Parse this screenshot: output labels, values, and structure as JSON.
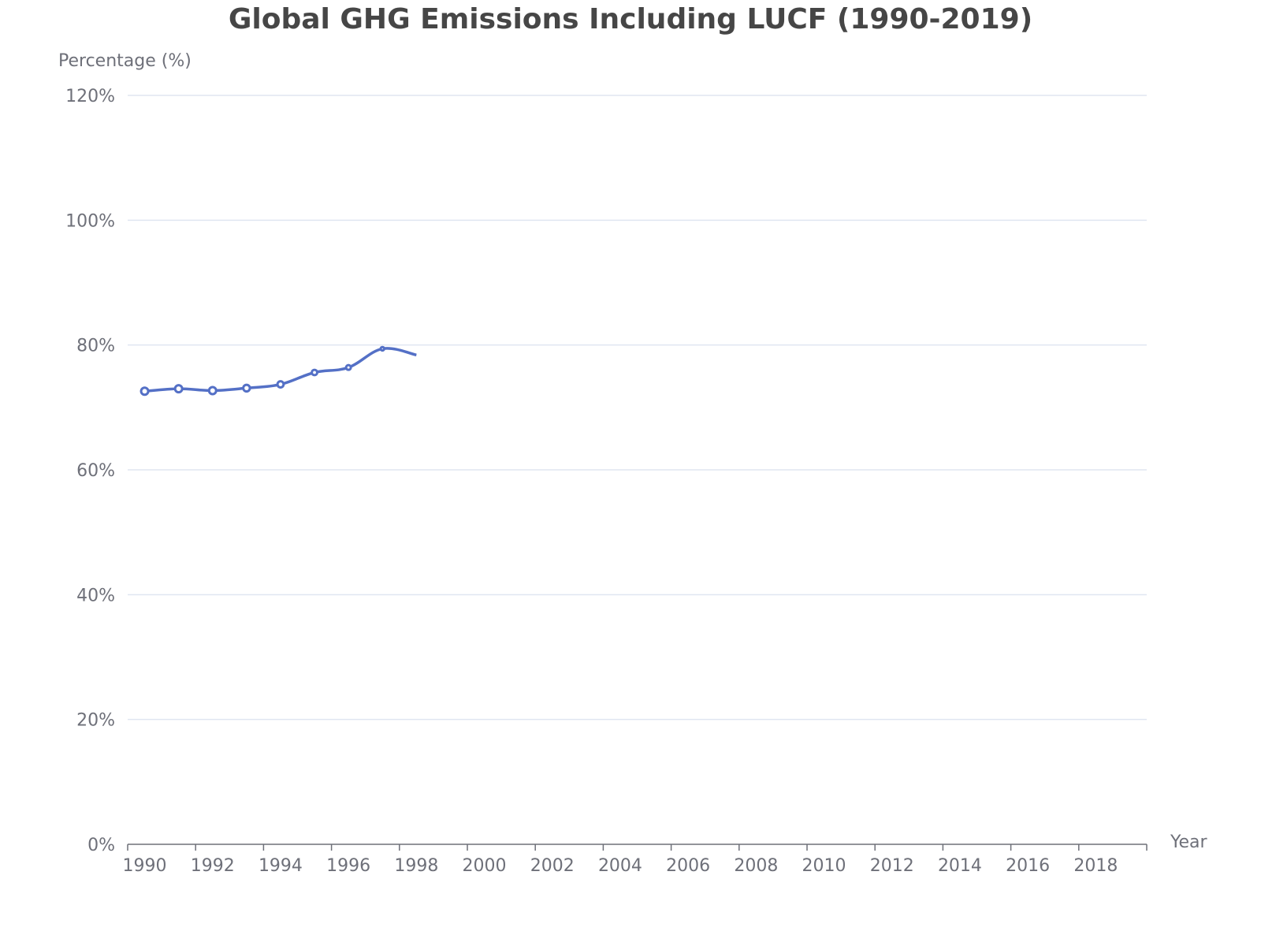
{
  "chart_data": {
    "type": "line",
    "title": "Global GHG Emissions Including LUCF (1990-2019)",
    "xlabel": "Year",
    "ylabel": "Percentage (%)",
    "xlim": [
      1990,
      2020
    ],
    "x_ticks": [
      "1990",
      "1992",
      "1994",
      "1996",
      "1998",
      "2000",
      "2002",
      "2004",
      "2006",
      "2008",
      "2010",
      "2012",
      "2014",
      "2016",
      "2018"
    ],
    "ylim": [
      0,
      120
    ],
    "y_ticks": [
      "0%",
      "20%",
      "40%",
      "60%",
      "80%",
      "100%",
      "120%"
    ],
    "grid": true,
    "legend": "none",
    "series": [
      {
        "color": "#5470c6",
        "x": [
          1990,
          1991,
          1992,
          1993,
          1994,
          1995,
          1996,
          1997,
          1998
        ],
        "values": [
          72.6,
          73.0,
          72.7,
          73.1,
          73.7,
          75.6,
          76.4,
          79.4,
          78.4
        ]
      }
    ]
  }
}
